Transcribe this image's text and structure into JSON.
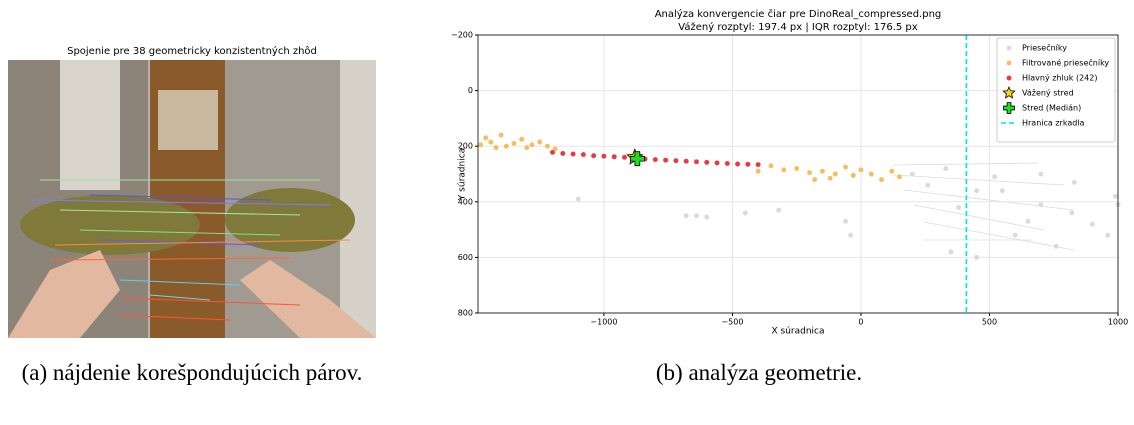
{
  "subfigure_a": {
    "title": "Spojenie pre 38 geometricky konzistentných zhôd",
    "caption": "(a) nájdenie korešpondujúcich párov."
  },
  "subfigure_b": {
    "caption": "(b) analýza geometrie."
  },
  "chart_data": {
    "type": "scatter",
    "title": "Analýza konvergencie čiar pre DinoReal_compressed.png",
    "subtitle": "Vážený rozptyl: 197.4 px | IQR rozptyl: 176.5 px",
    "x_label": "X súradnica",
    "y_label": "Y súradnica",
    "xlim": [
      -1490,
      1000
    ],
    "xticks": [
      {
        "value": -1000,
        "label": "−1000"
      },
      {
        "value": -500,
        "label": "−500"
      },
      0,
      500,
      1000
    ],
    "ylim": [
      800,
      -200
    ],
    "yticks": [
      {
        "value": -200,
        "label": "−200"
      },
      0,
      200,
      400,
      600,
      800
    ],
    "grid": true,
    "legend": "upper right",
    "series": [
      {
        "name": "Priesečníky",
        "color": "#d3d3d3",
        "marker": "circle",
        "x": [
          200,
          260,
          330,
          380,
          450,
          520,
          600,
          650,
          700,
          760,
          820,
          900,
          960,
          990,
          -1100,
          -680,
          -640,
          -600,
          -450,
          -320,
          -60,
          -40,
          350,
          550,
          830,
          1000,
          700,
          450
        ],
        "values": [
          300,
          340,
          280,
          420,
          360,
          310,
          520,
          470,
          300,
          560,
          440,
          480,
          520,
          380,
          390,
          450,
          450,
          455,
          440,
          430,
          470,
          520,
          580,
          360,
          330,
          410,
          410,
          600
        ]
      },
      {
        "name": "Filtrované priesečníky",
        "color": "#f5b041",
        "marker": "circle",
        "x": [
          -1480,
          -1460,
          -1440,
          -1420,
          -1400,
          -1380,
          -1350,
          -1320,
          -1300,
          -1280,
          -1250,
          -1220,
          -1190,
          -350,
          -300,
          -250,
          -200,
          -150,
          -100,
          -60,
          -30,
          0,
          40,
          80,
          120,
          150,
          -400,
          -180,
          -120
        ],
        "values": [
          195,
          170,
          185,
          205,
          160,
          200,
          190,
          175,
          205,
          195,
          185,
          200,
          210,
          270,
          285,
          280,
          295,
          290,
          300,
          275,
          305,
          285,
          300,
          320,
          290,
          310,
          290,
          320,
          315
        ]
      },
      {
        "name": "Hlavný zhluk (242)",
        "color": "#e8141c",
        "marker": "circle",
        "x": [
          -1200,
          -1160,
          -1120,
          -1080,
          -1040,
          -1000,
          -960,
          -920,
          -880,
          -840,
          -800,
          -760,
          -720,
          -680,
          -640,
          -600,
          -560,
          -520,
          -480,
          -440,
          -400
        ],
        "values": [
          222,
          226,
          228,
          230,
          234,
          236,
          238,
          240,
          242,
          246,
          248,
          250,
          252,
          254,
          256,
          258,
          260,
          262,
          264,
          265,
          266
        ]
      },
      {
        "name": "Vážený stred",
        "color": "#ffd700",
        "marker": "star",
        "x": [
          -880
        ],
        "values": [
          240
        ]
      },
      {
        "name": "Stred (Medián)",
        "color": "#22dd22",
        "marker": "plus",
        "x": [
          -870
        ],
        "values": [
          245
        ]
      },
      {
        "name": "Hranica zrkadla",
        "color": "#00e5ee",
        "marker": "vline",
        "x": [
          410
        ]
      }
    ]
  }
}
